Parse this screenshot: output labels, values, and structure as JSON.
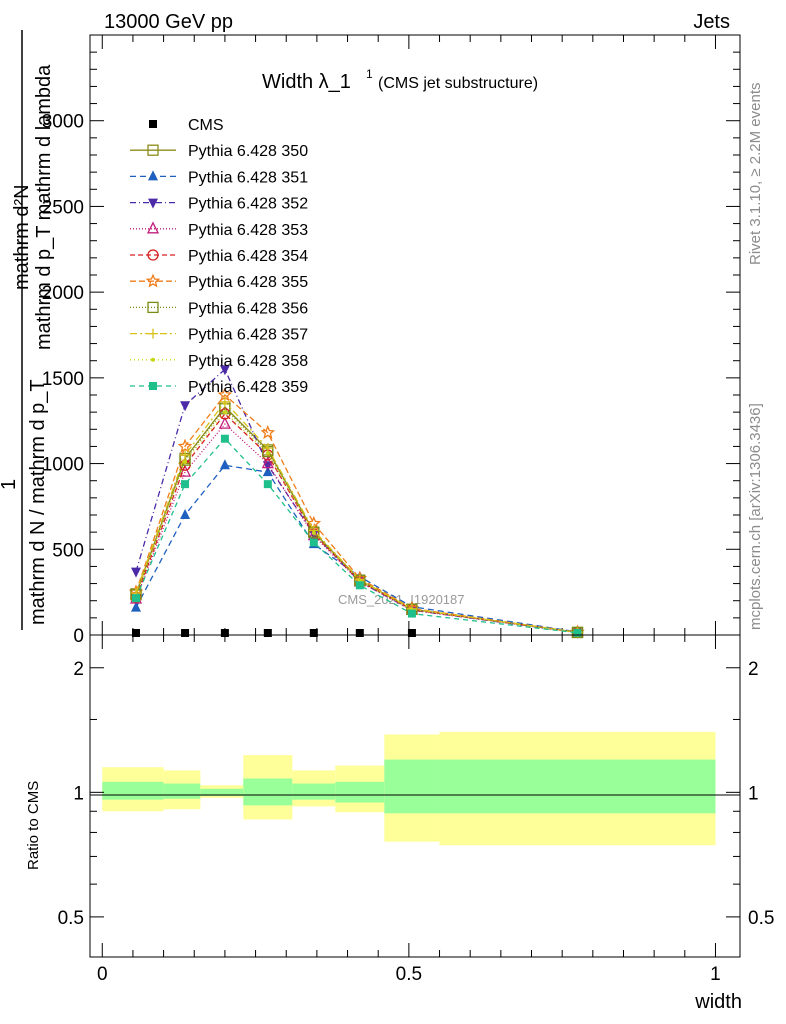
{
  "header": {
    "left": "13000 GeV pp",
    "right": "Jets"
  },
  "title": {
    "main": "Width λ_1",
    "sup": "1",
    "sub": "(CMS jet substructure)"
  },
  "side_labels": {
    "rivet": "Rivet 3.1.10, ≥ 2.2M events",
    "mcplots": "mcplots.cern.ch [arXiv:1306.3436]"
  },
  "watermark": "CMS_2021_I1920187",
  "y_axis_main": {
    "line1": "mathrm d²N",
    "line2": "mathrm d p_T mathrm d lambda",
    "numerator": "1",
    "denominator": "mathrm d N / mathrm d p_T"
  },
  "ratio_axis": {
    "label": "Ratio to CMS"
  },
  "x_axis": {
    "label": "width"
  },
  "chart_data": {
    "type": "line",
    "xlim": [
      -0.02,
      1.04
    ],
    "ylim": [
      0,
      3500
    ],
    "yticks": [
      0,
      500,
      1000,
      1500,
      2000,
      2500,
      3000
    ],
    "x": [
      0.055,
      0.135,
      0.2,
      0.27,
      0.345,
      0.42,
      0.505,
      0.775
    ],
    "cms": {
      "name": "CMS",
      "values": [
        0,
        0,
        0,
        0,
        0,
        0,
        0,
        null
      ]
    },
    "series": [
      {
        "name": "Pythia 6.428 350",
        "color": "#8c8c1a",
        "dash": "",
        "marker": "square-open",
        "values": [
          240,
          1030,
          1330,
          1080,
          600,
          320,
          150,
          15
        ]
      },
      {
        "name": "Pythia 6.428 351",
        "color": "#1f5fbf",
        "dash": "6,4",
        "marker": "triangle-up-filled",
        "values": [
          160,
          700,
          990,
          950,
          530,
          340,
          165,
          18
        ]
      },
      {
        "name": "Pythia 6.428 352",
        "color": "#4b2aa8",
        "dash": "6,3,1,3",
        "marker": "triangle-down-filled",
        "values": [
          370,
          1340,
          1550,
          990,
          590,
          310,
          145,
          14
        ]
      },
      {
        "name": "Pythia 6.428 353",
        "color": "#c21d7a",
        "dash": "1,2",
        "marker": "triangle-up-open",
        "values": [
          210,
          950,
          1230,
          1000,
          580,
          310,
          145,
          14
        ]
      },
      {
        "name": "Pythia 6.428 354",
        "color": "#d62020",
        "dash": "5,3",
        "marker": "circle-open",
        "values": [
          220,
          990,
          1290,
          1050,
          590,
          315,
          148,
          15
        ]
      },
      {
        "name": "Pythia 6.428 355",
        "color": "#f07d1a",
        "dash": "6,3",
        "marker": "star-open",
        "values": [
          250,
          1100,
          1400,
          1180,
          650,
          330,
          155,
          16
        ]
      },
      {
        "name": "Pythia 6.428 356",
        "color": "#7a8c14",
        "dash": "1,2",
        "marker": "square-open",
        "values": [
          235,
          1020,
          1320,
          1070,
          600,
          318,
          150,
          15
        ]
      },
      {
        "name": "Pythia 6.428 357",
        "color": "#d6c21a",
        "dash": "7,3,2,3",
        "marker": "cross",
        "values": [
          245,
          1050,
          1360,
          1090,
          610,
          322,
          152,
          15
        ]
      },
      {
        "name": "Pythia 6.428 358",
        "color": "#c8d61a",
        "dash": "1,3",
        "marker": "dot",
        "values": [
          230,
          1010,
          1300,
          1060,
          595,
          316,
          149,
          15
        ]
      },
      {
        "name": "Pythia 6.428 359",
        "color": "#1fbf8c",
        "dash": "5,4",
        "marker": "square-filled",
        "values": [
          215,
          880,
          1145,
          880,
          540,
          290,
          125,
          13
        ]
      }
    ],
    "ratio": {
      "ylim": [
        0.4,
        2.4
      ],
      "ticks": [
        0.5,
        1,
        2
      ],
      "bins": [
        0.0,
        0.1,
        0.16,
        0.23,
        0.31,
        0.38,
        0.46,
        0.55,
        1.0
      ],
      "inner": [
        [
          0.96,
          1.06
        ],
        [
          0.965,
          1.05
        ],
        [
          0.98,
          1.02
        ],
        [
          0.93,
          1.08
        ],
        [
          0.96,
          1.05
        ],
        [
          0.945,
          1.06
        ],
        [
          0.89,
          1.2
        ],
        [
          0.89,
          1.2
        ]
      ],
      "outer": [
        [
          0.9,
          1.15
        ],
        [
          0.91,
          1.13
        ],
        [
          0.97,
          1.04
        ],
        [
          0.86,
          1.23
        ],
        [
          0.925,
          1.13
        ],
        [
          0.895,
          1.16
        ],
        [
          0.76,
          1.38
        ],
        [
          0.745,
          1.4
        ]
      ]
    }
  }
}
